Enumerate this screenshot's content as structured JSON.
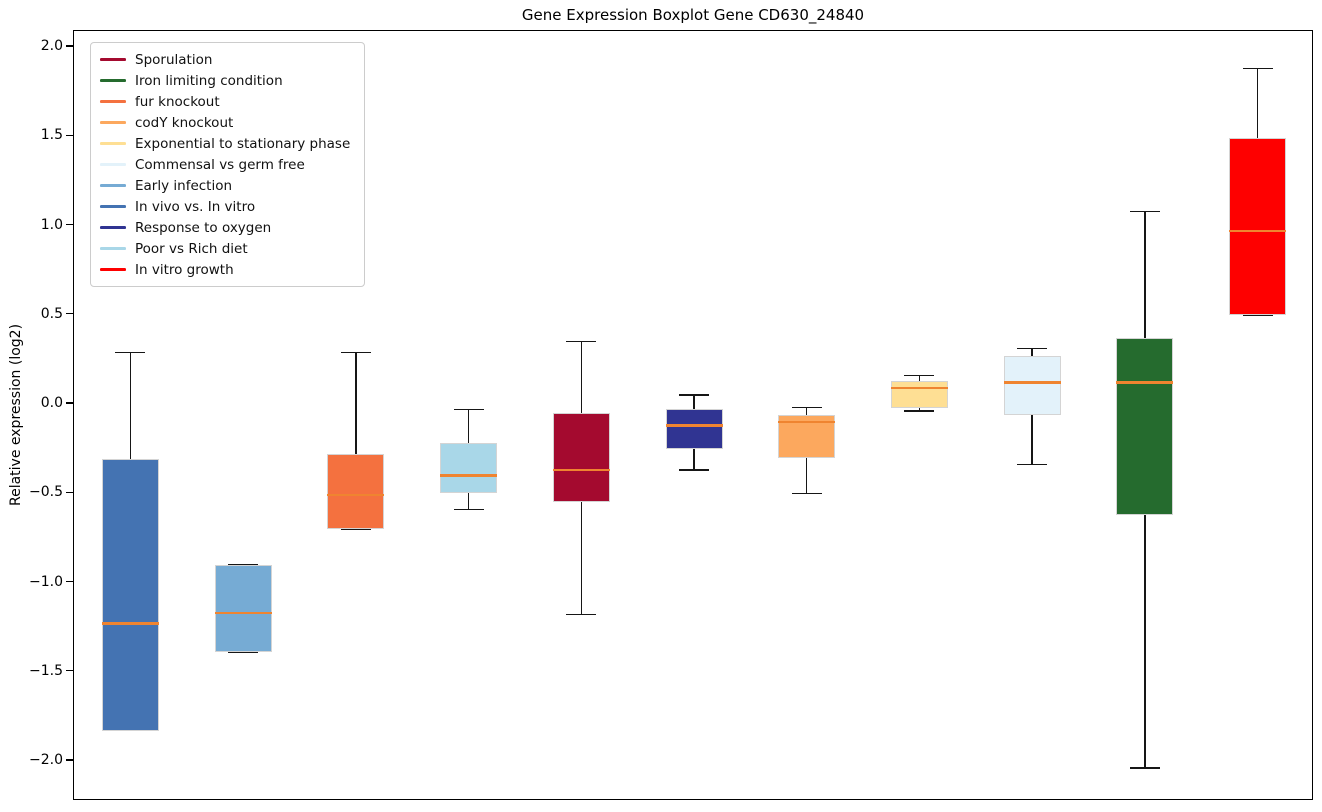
{
  "chart_data": {
    "type": "boxplot",
    "title": "Gene Expression Boxplot Gene CD630_24840",
    "ylabel": "Relative expression (log2)",
    "xlabel": "",
    "ylim": [
      -2.224,
      2.09
    ],
    "grid": false,
    "legend_position": "upper left",
    "median_color": "#ef8430",
    "whisker_color": "#161616",
    "yticks": [
      {
        "value": 2.0,
        "label": "2.0"
      },
      {
        "value": 1.5,
        "label": "1.5"
      },
      {
        "value": 1.0,
        "label": "1.0"
      },
      {
        "value": 0.5,
        "label": "0.5"
      },
      {
        "value": 0.0,
        "label": "0.0"
      },
      {
        "value": -0.5,
        "label": "−0.5"
      },
      {
        "value": -1.0,
        "label": "−1.0"
      },
      {
        "value": -1.5,
        "label": "−1.5"
      },
      {
        "value": -2.0,
        "label": "−2.0"
      }
    ],
    "groups": [
      {
        "label": "In vivo vs. In vitro",
        "color": "#4473b2",
        "whislo": -1.83,
        "q1": -1.83,
        "med": -1.23,
        "q3": -0.31,
        "whishi": 0.29
      },
      {
        "label": "Early infection",
        "color": "#76abd4",
        "whislo": -1.39,
        "q1": -1.39,
        "med": -1.17,
        "q3": -0.9,
        "whishi": -0.9
      },
      {
        "label": "fur knockout",
        "color": "#f4713f",
        "whislo": -0.7,
        "q1": -0.7,
        "med": -0.51,
        "q3": -0.28,
        "whishi": 0.29
      },
      {
        "label": "Poor vs Rich diet",
        "color": "#a9d7e8",
        "whislo": -0.59,
        "q1": -0.5,
        "med": -0.4,
        "q3": -0.22,
        "whishi": -0.03
      },
      {
        "label": "Sporulation",
        "color": "#a40a2f",
        "whislo": -1.18,
        "q1": -0.55,
        "med": -0.37,
        "q3": -0.05,
        "whishi": 0.35
      },
      {
        "label": "Response to oxygen",
        "color": "#303492",
        "whislo": -0.37,
        "q1": -0.25,
        "med": -0.12,
        "q3": -0.03,
        "whishi": 0.05
      },
      {
        "label": "codY knockout",
        "color": "#fca85e",
        "whislo": -0.5,
        "q1": -0.3,
        "med": -0.1,
        "q3": -0.06,
        "whishi": -0.02
      },
      {
        "label": "Exponential to stationary phase",
        "color": "#fedf94",
        "whislo": -0.04,
        "q1": -0.02,
        "med": 0.09,
        "q3": 0.13,
        "whishi": 0.16
      },
      {
        "label": "Commensal vs germ free",
        "color": "#e3f2fa",
        "whislo": -0.34,
        "q1": -0.06,
        "med": 0.12,
        "q3": 0.27,
        "whishi": 0.31
      },
      {
        "label": "Iron limiting condition",
        "color": "#256b2e",
        "whislo": -2.04,
        "q1": -0.62,
        "med": 0.12,
        "q3": 0.37,
        "whishi": 1.08
      },
      {
        "label": "In vitro growth",
        "color": "#fe0000",
        "whislo": 0.5,
        "q1": 0.5,
        "med": 0.97,
        "q3": 1.49,
        "whishi": 1.88
      }
    ],
    "legend": [
      {
        "label": "Sporulation",
        "color": "#a40a2f"
      },
      {
        "label": "Iron limiting condition",
        "color": "#256b2e"
      },
      {
        "label": "fur knockout",
        "color": "#f4713f"
      },
      {
        "label": "codY knockout",
        "color": "#fca85e"
      },
      {
        "label": "Exponential to stationary phase",
        "color": "#fedf94"
      },
      {
        "label": "Commensal vs germ free",
        "color": "#e3f2fa"
      },
      {
        "label": "Early infection",
        "color": "#76abd4"
      },
      {
        "label": "In vivo vs. In vitro",
        "color": "#4473b2"
      },
      {
        "label": "Response to oxygen",
        "color": "#303492"
      },
      {
        "label": "Poor vs Rich diet",
        "color": "#a9d7e8"
      },
      {
        "label": "In vitro growth",
        "color": "#fe0000"
      }
    ]
  }
}
